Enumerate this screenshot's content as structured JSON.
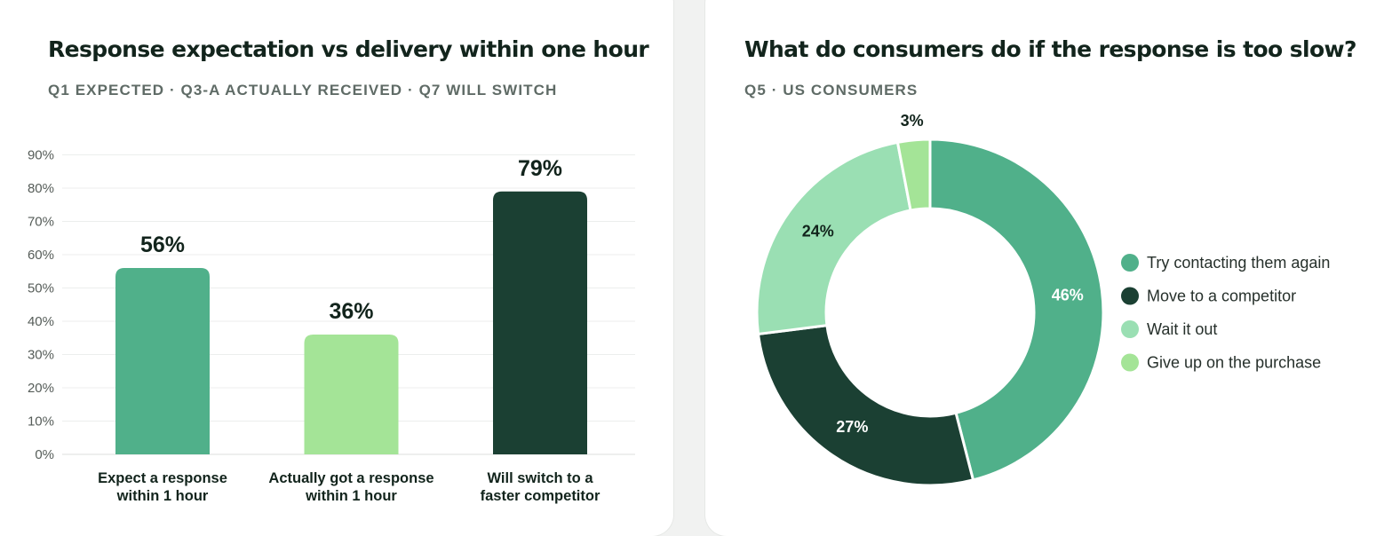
{
  "left_panel": {
    "title": "Response expectation vs delivery within one hour",
    "subtitle": "Q1 EXPECTED · Q3-A ACTUALLY RECEIVED · Q7 WILL SWITCH"
  },
  "right_panel": {
    "title": "What do consumers do if the response is too slow?",
    "subtitle": "Q5 · US CONSUMERS"
  },
  "chart_data": [
    {
      "type": "bar",
      "title": "Response expectation vs delivery within one hour",
      "subtitle": "Q1 EXPECTED · Q3-A ACTUALLY RECEIVED · Q7 WILL SWITCH",
      "categories": [
        [
          "Expect a response",
          "within 1 hour"
        ],
        [
          "Actually got a response",
          "within 1 hour"
        ],
        [
          "Will switch to a",
          "faster competitor"
        ]
      ],
      "values": [
        56,
        36,
        79
      ],
      "value_labels": [
        "56%",
        "36%",
        "79%"
      ],
      "colors": [
        "#50b08a",
        "#a4e497",
        "#1b4033"
      ],
      "yticks": [
        "0%",
        "10%",
        "20%",
        "30%",
        "40%",
        "50%",
        "60%",
        "70%",
        "80%",
        "90%"
      ],
      "ylim": [
        0,
        90
      ],
      "xlabel": "",
      "ylabel": "",
      "grid": true,
      "legend": false
    },
    {
      "type": "pie",
      "donut": true,
      "title": "What do consumers do if the response is too slow?",
      "subtitle": "Q5 · US CONSUMERS",
      "labels": [
        "Try contacting them again",
        "Move to a competitor",
        "Wait it out",
        "Give up on the purchase"
      ],
      "values": [
        46,
        27,
        24,
        3
      ],
      "value_labels": [
        "46%",
        "27%",
        "24%",
        "3%"
      ],
      "colors": [
        "#50b08a",
        "#1b4033",
        "#9adfb3",
        "#a4e497"
      ],
      "label_colors": [
        "#ffffff",
        "#ffffff",
        "#12241c",
        "#12241c"
      ],
      "legend": "right"
    }
  ]
}
